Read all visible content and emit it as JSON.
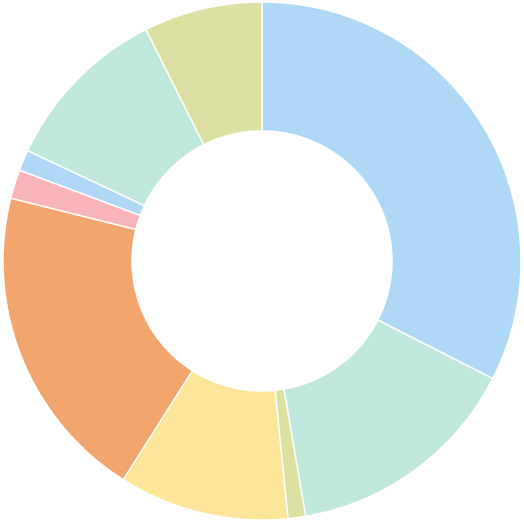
{
  "chart_data": {
    "type": "donut",
    "values": [
      32.5,
      14.8,
      1.1,
      10.6,
      19.9,
      1.8,
      1.3,
      10.6,
      7.4
    ],
    "colors": [
      "#aed8f6",
      "#c0e8dc",
      "#dde0a3",
      "#fde59a",
      "#f2a56c",
      "#f9b4b9",
      "#aed8f6",
      "#c0e8dc",
      "#dde0a3"
    ]
  }
}
